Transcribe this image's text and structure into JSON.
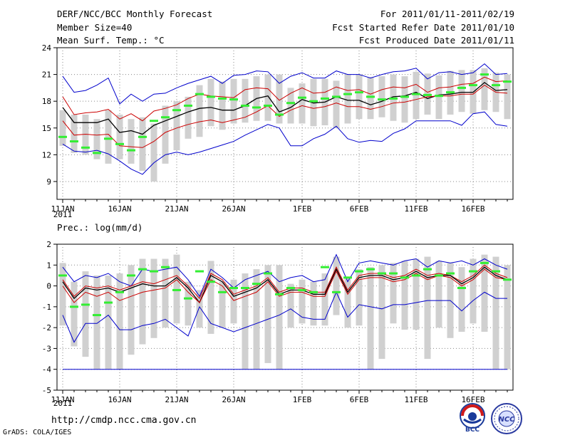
{
  "header": {
    "title": "DERF/NCC/BCC Monthly Forecast",
    "member_size": "Member Size=40",
    "variable": "Mean Surf. Temp.: °C",
    "period": "For 2011/01/11-2011/02/19",
    "started": "Fcst Started Refer Date 2011/01/10",
    "produced": "Fcst Produced Date 2011/01/11"
  },
  "footer": {
    "url": "http://cmdp.ncc.cma.gov.cn",
    "grads": "GrADS: COLA/IGES",
    "logo_bcc_text": "BCC",
    "logo_ncc_text": "NCC"
  },
  "colors": {
    "obs_bar": "#d0d0d0",
    "ensemble_mean": "#000000",
    "inner_band": "#cc0000",
    "outer_band": "#0000cc",
    "member_mark": "#33ee33",
    "grid": "#888888"
  },
  "chart_data": [
    {
      "type": "line",
      "title": "Mean Surf. Temp.: °C",
      "ylim": [
        7,
        24
      ],
      "yticks": [
        9,
        12,
        15,
        18,
        21,
        24
      ],
      "xlim": [
        0.5,
        40.5
      ],
      "xtick_days": [
        1,
        6,
        11,
        16,
        22,
        27,
        32,
        37
      ],
      "xtick_labels": [
        "11JAN",
        "16JAN",
        "21JAN",
        "26JAN",
        "1FEB",
        "6FEB",
        "11FEB",
        "16FEB"
      ],
      "year_label": "2011",
      "bars_low": [
        13.0,
        12.2,
        12.0,
        11.5,
        11.0,
        11.5,
        11.0,
        10.2,
        9.0,
        11.0,
        12.5,
        13.8,
        14.0,
        15.2,
        14.8,
        15.5,
        15.6,
        15.8,
        15.8,
        15.5,
        15.5,
        15.5,
        15.2,
        15.3,
        15.0,
        15.5,
        16.0,
        16.0,
        16.2,
        15.8,
        15.6,
        16.0,
        16.5,
        16.0,
        16.5,
        16.8,
        16.6,
        17.0,
        16.8,
        16.0
      ],
      "bars_high": [
        17.0,
        16.5,
        16.5,
        16.0,
        17.0,
        16.5,
        16.0,
        16.2,
        15.5,
        17.5,
        18.0,
        18.5,
        19.8,
        20.5,
        20.2,
        20.5,
        20.5,
        20.8,
        21.0,
        21.0,
        19.5,
        20.0,
        20.5,
        20.5,
        20.3,
        21.0,
        21.0,
        20.7,
        20.8,
        21.0,
        20.8,
        21.3,
        21.1,
        20.9,
        21.4,
        21.5,
        21.5,
        21.7,
        21.2,
        21.0
      ],
      "green_marks": [
        14.0,
        13.5,
        12.8,
        12.2,
        13.8,
        13.2,
        12.5,
        14.0,
        15.8,
        16.2,
        17.0,
        17.5,
        18.8,
        18.5,
        18.3,
        18.2,
        17.5,
        17.3,
        17.5,
        16.5,
        17.8,
        18.4,
        18.0,
        18.3,
        18.5,
        18.8,
        19.0,
        18.5,
        18.2,
        18.3,
        18.5,
        18.8,
        18.7,
        18.6,
        19.0,
        19.5,
        19.8,
        21.0,
        19.8,
        20.2
      ],
      "series": [
        {
          "name": "upper-outer",
          "values": [
            20.8,
            19.0,
            19.2,
            19.8,
            20.6,
            17.7,
            18.8,
            18.0,
            18.8,
            18.9,
            19.5,
            20.0,
            20.4,
            20.8,
            20.0,
            20.9,
            21.0,
            21.4,
            21.3,
            20.0,
            20.8,
            21.2,
            20.6,
            20.6,
            21.4,
            21.0,
            21.0,
            20.6,
            21.0,
            21.3,
            21.4,
            21.7,
            20.5,
            21.2,
            21.3,
            21.0,
            21.2,
            22.2,
            21.0,
            21.1
          ]
        },
        {
          "name": "upper-inner",
          "values": [
            18.5,
            16.5,
            16.7,
            16.8,
            17.1,
            16.0,
            16.6,
            15.8,
            16.9,
            17.2,
            17.6,
            18.3,
            18.8,
            18.6,
            18.5,
            18.4,
            19.3,
            19.5,
            19.4,
            18.1,
            18.9,
            19.5,
            18.9,
            19.0,
            19.6,
            19.2,
            19.3,
            18.8,
            19.3,
            19.6,
            19.5,
            19.9,
            19.0,
            19.5,
            19.6,
            19.9,
            20.0,
            20.7,
            20.2,
            20.3
          ]
        },
        {
          "name": "ensemble-mean",
          "values": [
            17.3,
            15.6,
            15.6,
            15.6,
            16.0,
            14.5,
            14.7,
            14.3,
            15.3,
            15.8,
            16.3,
            16.8,
            17.2,
            17.3,
            17.0,
            17.0,
            17.5,
            18.3,
            18.6,
            16.8,
            17.3,
            18.2,
            17.8,
            17.9,
            18.5,
            18.1,
            18.1,
            17.6,
            18.0,
            18.5,
            18.6,
            19.0,
            18.3,
            18.7,
            18.8,
            19.0,
            19.0,
            20.1,
            19.2,
            19.3
          ]
        },
        {
          "name": "lower-inner",
          "values": [
            15.8,
            14.2,
            14.3,
            14.2,
            14.3,
            13.0,
            12.9,
            12.8,
            13.5,
            14.5,
            15.0,
            15.4,
            15.7,
            15.9,
            15.6,
            15.9,
            16.2,
            16.8,
            17.5,
            16.3,
            17.0,
            17.5,
            17.2,
            17.4,
            17.8,
            17.4,
            17.4,
            17.1,
            17.4,
            17.8,
            17.9,
            18.2,
            18.5,
            18.6,
            18.6,
            18.8,
            18.8,
            19.8,
            19.0,
            18.9
          ]
        },
        {
          "name": "lower-outer",
          "values": [
            13.2,
            12.4,
            12.3,
            12.5,
            12.1,
            11.3,
            10.4,
            9.8,
            11.1,
            12.0,
            12.3,
            12.0,
            12.3,
            12.7,
            13.1,
            13.5,
            14.2,
            14.8,
            15.4,
            15.0,
            13.0,
            13.0,
            13.8,
            14.3,
            15.2,
            13.8,
            13.4,
            13.6,
            13.5,
            14.4,
            14.9,
            15.8,
            15.8,
            15.8,
            15.8,
            15.3,
            16.6,
            16.8,
            15.4,
            15.2
          ]
        }
      ]
    },
    {
      "type": "line",
      "title": "Prec.: log(mm/d)",
      "ylim": [
        -5,
        2
      ],
      "yticks": [
        -5,
        -4,
        -3,
        -2,
        -1,
        0,
        1,
        2
      ],
      "xlim": [
        0.5,
        40.5
      ],
      "xtick_days": [
        1,
        6,
        11,
        16,
        22,
        27,
        32,
        37
      ],
      "xtick_labels": [
        "11JAN",
        "16JAN",
        "21JAN",
        "26JAN",
        "1FEB",
        "6FEB",
        "11FEB",
        "16FEB"
      ],
      "year_label": "2011",
      "bars_low": [
        -1.9,
        -2.9,
        -3.4,
        -4.0,
        -4.0,
        -4.0,
        -3.3,
        -2.8,
        -2.5,
        -2.0,
        -1.8,
        -1.9,
        -2.0,
        -2.3,
        -2.0,
        -1.8,
        -4.0,
        -4.0,
        -3.7,
        -4.0,
        -2.0,
        -1.8,
        -1.9,
        -1.9,
        -1.4,
        -2.0,
        -1.9,
        -4.0,
        -3.5,
        -1.8,
        -2.1,
        -2.1,
        -3.5,
        -2.0,
        -2.5,
        -2.2,
        -1.8,
        -2.2,
        -4.0,
        -4.0
      ],
      "bars_high": [
        1.1,
        0.2,
        0.7,
        0.5,
        0.5,
        0.6,
        1.0,
        1.3,
        1.3,
        1.3,
        1.5,
        0.2,
        -0.2,
        1.2,
        0.2,
        0.3,
        0.6,
        0.8,
        1.0,
        1.0,
        0.1,
        0.3,
        0.2,
        0.6,
        1.4,
        0.4,
        0.8,
        0.9,
        1.0,
        1.1,
        1.2,
        1.3,
        1.4,
        1.2,
        1.1,
        0.9,
        1.3,
        1.5,
        1.4,
        1.0
      ],
      "green_marks": [
        0.5,
        -1.0,
        -0.9,
        -1.4,
        -0.8,
        -0.3,
        0.5,
        0.8,
        0.7,
        0.9,
        -0.2,
        -0.6,
        0.7,
        0.2,
        -0.3,
        -0.1,
        -0.1,
        0.1,
        0.6,
        -0.4,
        -0.1,
        -0.2,
        -0.3,
        0.9,
        -0.3,
        0.4,
        0.7,
        0.8,
        0.6,
        0.6,
        0.4,
        0.5,
        0.8,
        0.5,
        0.6,
        -0.1,
        0.7,
        1.1,
        0.7,
        0.3
      ],
      "series": [
        {
          "name": "upper-outer",
          "values": [
            0.9,
            0.2,
            0.5,
            0.4,
            0.6,
            0.2,
            0.0,
            0.8,
            0.7,
            0.8,
            0.9,
            0.3,
            -0.5,
            0.8,
            0.4,
            -0.1,
            0.3,
            0.5,
            0.7,
            0.2,
            0.4,
            0.5,
            0.2,
            0.3,
            1.5,
            0.2,
            1.1,
            1.2,
            1.1,
            1.0,
            1.2,
            1.3,
            0.9,
            1.2,
            1.1,
            1.2,
            1.0,
            1.3,
            1.0,
            0.8
          ]
        },
        {
          "name": "upper-inner",
          "values": [
            0.3,
            -0.5,
            0.0,
            -0.1,
            0.0,
            -0.2,
            0.0,
            0.2,
            0.1,
            0.3,
            0.5,
            0.0,
            -0.6,
            0.6,
            0.3,
            -0.4,
            -0.2,
            0.0,
            0.4,
            -0.3,
            -0.1,
            -0.1,
            -0.3,
            -0.3,
            0.9,
            -0.2,
            0.5,
            0.6,
            0.6,
            0.4,
            0.5,
            0.8,
            0.5,
            0.6,
            0.5,
            0.2,
            0.5,
            1.0,
            0.6,
            0.4
          ]
        },
        {
          "name": "ensemble-mean",
          "values": [
            0.2,
            -0.6,
            -0.1,
            -0.2,
            -0.1,
            -0.3,
            -0.1,
            0.1,
            0.0,
            0.0,
            0.4,
            -0.1,
            -0.8,
            0.5,
            0.2,
            -0.5,
            -0.3,
            -0.1,
            0.3,
            -0.4,
            -0.2,
            -0.2,
            -0.4,
            -0.4,
            0.8,
            -0.3,
            0.4,
            0.5,
            0.5,
            0.3,
            0.4,
            0.7,
            0.4,
            0.5,
            0.5,
            0.1,
            0.4,
            0.9,
            0.5,
            0.3
          ]
        },
        {
          "name": "lower-inner",
          "values": [
            0.0,
            -0.8,
            -0.3,
            -0.5,
            -0.3,
            -0.7,
            -0.5,
            -0.3,
            -0.2,
            -0.1,
            0.3,
            -0.3,
            -0.8,
            0.3,
            0.0,
            -0.7,
            -0.5,
            -0.3,
            0.2,
            -0.5,
            -0.3,
            -0.3,
            -0.5,
            -0.5,
            0.7,
            -0.4,
            0.3,
            0.4,
            0.4,
            0.2,
            0.3,
            0.6,
            0.3,
            0.5,
            0.4,
            0.0,
            0.3,
            0.8,
            0.4,
            0.3
          ]
        },
        {
          "name": "lower-outer",
          "values": [
            -1.4,
            -2.7,
            -1.8,
            -1.8,
            -1.4,
            -2.1,
            -2.1,
            -1.9,
            -1.8,
            -1.6,
            -2.0,
            -2.4,
            -1.0,
            -1.8,
            -2.0,
            -2.2,
            -2.0,
            -1.8,
            -1.6,
            -1.4,
            -1.1,
            -1.5,
            -1.6,
            -1.6,
            -0.3,
            -1.5,
            -0.9,
            -1.0,
            -1.1,
            -0.9,
            -0.9,
            -0.8,
            -0.7,
            -0.7,
            -0.7,
            -1.2,
            -0.7,
            -0.3,
            -0.6,
            -0.6
          ]
        },
        {
          "name": "floor",
          "values": [
            -4,
            -4,
            -4,
            -4,
            -4,
            -4,
            -4,
            -4,
            -4,
            -4,
            -4,
            -4,
            -4,
            -4,
            -4,
            -4,
            -4,
            -4,
            -4,
            -4,
            -4,
            -4,
            -4,
            -4,
            -4,
            -4,
            -4,
            -4,
            -4,
            -4,
            -4,
            -4,
            -4,
            -4,
            -4,
            -4,
            -4,
            -4,
            -4,
            -4
          ]
        }
      ]
    }
  ]
}
